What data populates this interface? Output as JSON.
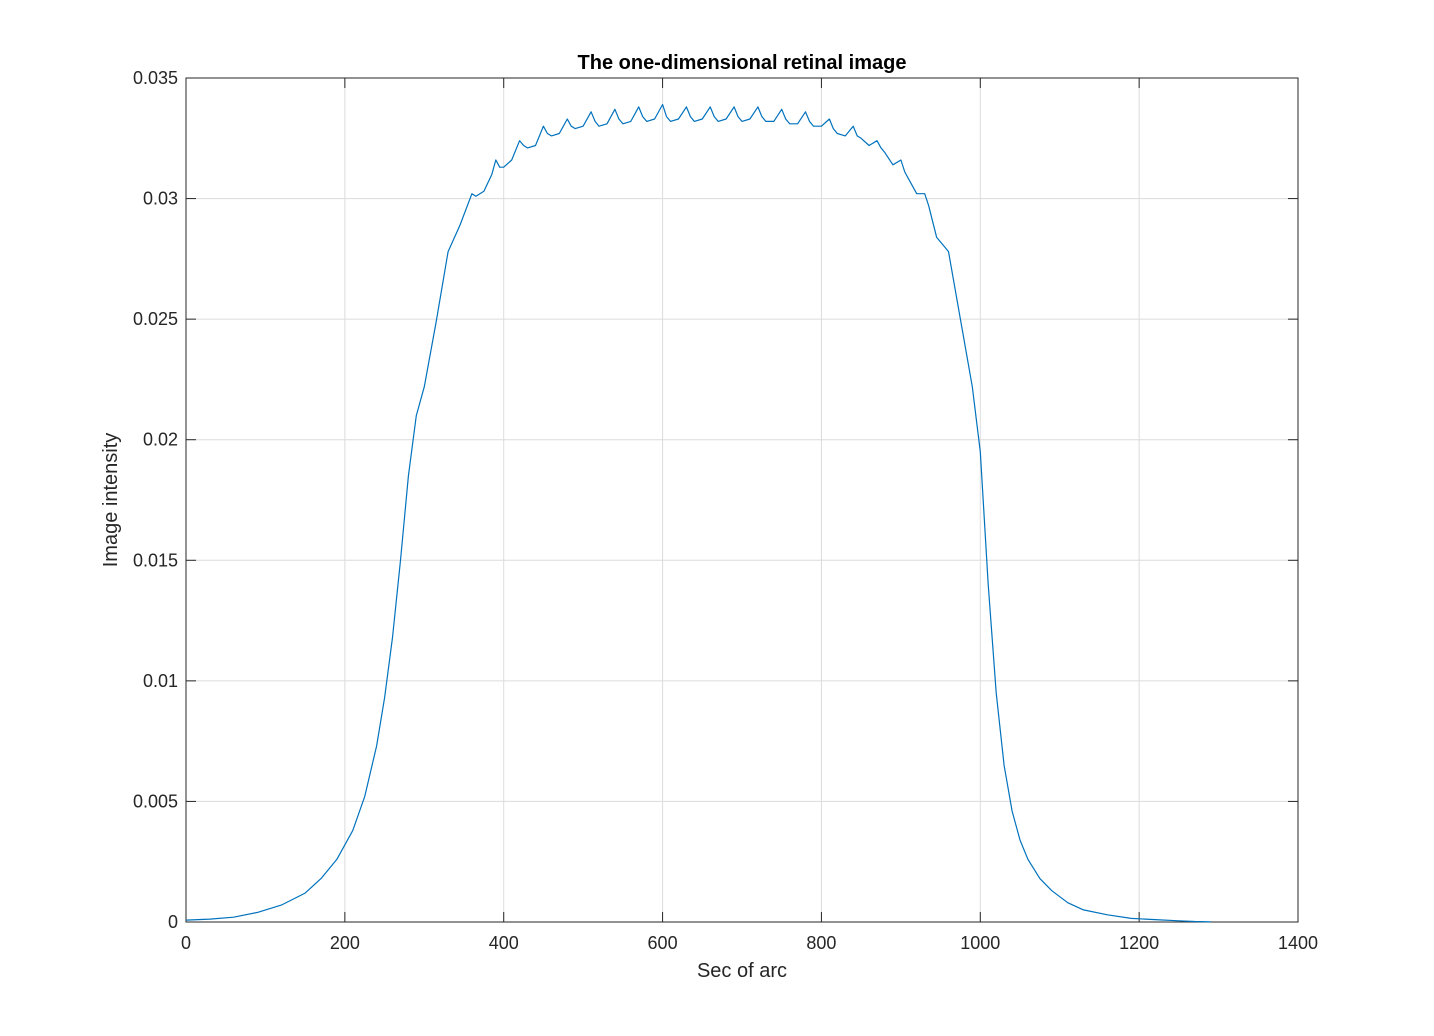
{
  "chart_data": {
    "type": "line",
    "title": "The one-dimensional retinal image",
    "xlabel": "Sec of arc",
    "ylabel": "Image intensity",
    "xlim": [
      0,
      1400
    ],
    "ylim": [
      0,
      0.035
    ],
    "xticks": [
      0,
      200,
      400,
      600,
      800,
      1000,
      1200,
      1400
    ],
    "yticks": [
      0,
      0.005,
      0.01,
      0.015,
      0.02,
      0.025,
      0.03,
      0.035
    ],
    "xtick_labels": [
      "0",
      "200",
      "400",
      "600",
      "800",
      "1000",
      "1200",
      "1400"
    ],
    "ytick_labels": [
      "0",
      "0.005",
      "0.01",
      "0.015",
      "0.02",
      "0.025",
      "0.03",
      "0.035"
    ],
    "grid": true,
    "legend": "none",
    "series_color": "#0072bd",
    "series": [
      {
        "x": [
          0,
          30,
          60,
          90,
          120,
          150,
          170,
          190,
          210,
          225,
          240,
          250,
          260,
          270,
          280,
          290,
          300,
          315,
          330,
          345,
          360,
          365,
          375,
          385,
          390,
          395,
          400,
          410,
          420,
          425,
          430,
          440,
          450,
          455,
          460,
          470,
          480,
          485,
          490,
          500,
          510,
          515,
          520,
          530,
          540,
          545,
          550,
          560,
          570,
          575,
          580,
          590,
          600,
          605,
          610,
          620,
          630,
          635,
          640,
          650,
          660,
          665,
          670,
          680,
          690,
          695,
          700,
          710,
          720,
          725,
          730,
          740,
          750,
          755,
          760,
          770,
          780,
          785,
          790,
          800,
          810,
          815,
          820,
          830,
          840,
          845,
          850,
          860,
          870,
          875,
          880,
          890,
          900,
          905,
          910,
          920,
          930,
          935,
          945,
          955,
          960,
          975,
          990,
          1000,
          1010,
          1020,
          1030,
          1040,
          1050,
          1060,
          1075,
          1090,
          1110,
          1130,
          1160,
          1190,
          1220,
          1250,
          1270,
          1290
        ],
        "y": [
          8e-05,
          0.00012,
          0.0002,
          0.0004,
          0.0007,
          0.0012,
          0.0018,
          0.0026,
          0.0038,
          0.0052,
          0.0073,
          0.0093,
          0.0118,
          0.015,
          0.0185,
          0.021,
          0.0222,
          0.0249,
          0.0278,
          0.0289,
          0.0302,
          0.0301,
          0.0303,
          0.031,
          0.0316,
          0.0313,
          0.0313,
          0.0316,
          0.0324,
          0.0322,
          0.0321,
          0.0322,
          0.033,
          0.0327,
          0.0326,
          0.0327,
          0.0333,
          0.033,
          0.0329,
          0.033,
          0.0336,
          0.0332,
          0.033,
          0.0331,
          0.0337,
          0.0333,
          0.0331,
          0.0332,
          0.0338,
          0.0334,
          0.0332,
          0.0333,
          0.0339,
          0.0334,
          0.0332,
          0.0333,
          0.0338,
          0.0334,
          0.0332,
          0.0333,
          0.0338,
          0.0334,
          0.0332,
          0.0333,
          0.0338,
          0.0334,
          0.0332,
          0.0333,
          0.0338,
          0.0334,
          0.0332,
          0.0332,
          0.0337,
          0.0333,
          0.0331,
          0.0331,
          0.0336,
          0.0332,
          0.033,
          0.033,
          0.0333,
          0.0329,
          0.0327,
          0.0326,
          0.033,
          0.0326,
          0.0325,
          0.0322,
          0.0324,
          0.0321,
          0.0319,
          0.0314,
          0.0316,
          0.0311,
          0.0308,
          0.0302,
          0.0302,
          0.0297,
          0.0284,
          0.028,
          0.0278,
          0.025,
          0.0222,
          0.0195,
          0.014,
          0.0095,
          0.0065,
          0.0046,
          0.0034,
          0.0026,
          0.0018,
          0.0013,
          0.0008,
          0.0005,
          0.0003,
          0.00015,
          0.0001,
          5e-05,
          2e-05,
          1e-05
        ]
      }
    ]
  }
}
